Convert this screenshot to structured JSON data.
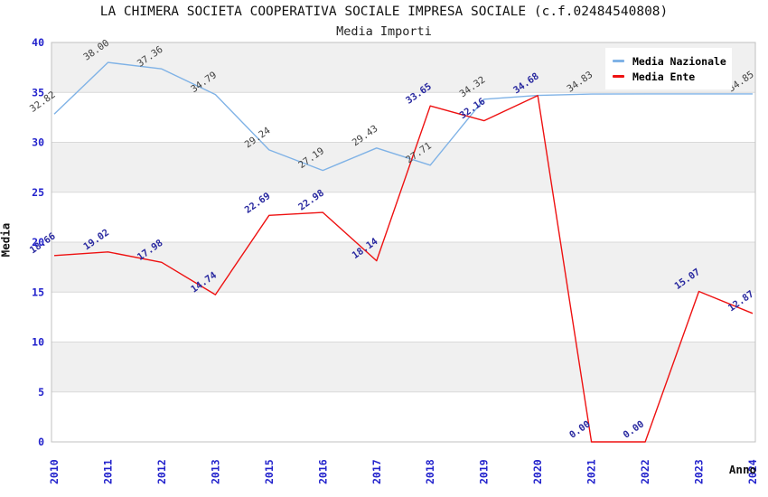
{
  "header": {
    "title": "LA CHIMERA SOCIETA COOPERATIVA SOCIALE IMPRESA SOCIALE (c.f.02484540808)",
    "subtitle": "Media Importi"
  },
  "axes": {
    "y_title": "Media",
    "x_title": "Anno",
    "y_ticks": [
      0,
      5,
      10,
      15,
      20,
      25,
      30,
      35,
      40
    ],
    "y_min": 0,
    "y_max": 40
  },
  "legend": {
    "items": [
      {
        "label": "Media Nazionale",
        "color": "#7fb2e6"
      },
      {
        "label": "Media Ente",
        "color": "#ee1111"
      }
    ]
  },
  "chart_data": {
    "type": "line",
    "title": "Media Importi",
    "xlabel": "Anno",
    "ylabel": "Media",
    "ylim": [
      0,
      40
    ],
    "grid": "horizontal-bands",
    "legend_position": "top-right",
    "categories": [
      "2010",
      "2011",
      "2012",
      "2013",
      "2015",
      "2016",
      "2017",
      "2018",
      "2019",
      "2020",
      "2021",
      "2022",
      "2023",
      "2024"
    ],
    "series": [
      {
        "name": "Media Nazionale",
        "color": "#7fb2e6",
        "label_color": "#3f3f3f",
        "label_bold": false,
        "values": [
          32.82,
          38.0,
          37.36,
          34.79,
          29.24,
          27.19,
          29.43,
          27.71,
          34.32,
          34.7,
          34.83,
          34.85,
          34.85,
          34.85
        ],
        "labels": [
          "32.82",
          "38.00",
          "37.36",
          "34.79",
          "29.24",
          "27.19",
          "29.43",
          "27.71",
          "34.32",
          "",
          "34.83",
          "",
          "",
          "34.85"
        ]
      },
      {
        "name": "Media Ente",
        "color": "#ee1111",
        "label_color": "#2a2aa0",
        "label_bold": true,
        "values": [
          18.66,
          19.02,
          17.98,
          14.74,
          22.69,
          22.98,
          18.14,
          33.65,
          32.16,
          34.68,
          0.0,
          0.0,
          15.07,
          12.87
        ],
        "labels": [
          "18.66",
          "19.02",
          "17.98",
          "14.74",
          "22.69",
          "22.98",
          "18.14",
          "33.65",
          "32.16",
          "34.68",
          "0.00",
          "0.00",
          "15.07",
          "12.87"
        ]
      }
    ]
  },
  "colors": {
    "tick_label": "#2222cc",
    "band_gray": "#f0f0f0",
    "gridline": "#d9d9d9",
    "plot_border": "#c0c0c0",
    "title_text": "#111111"
  }
}
